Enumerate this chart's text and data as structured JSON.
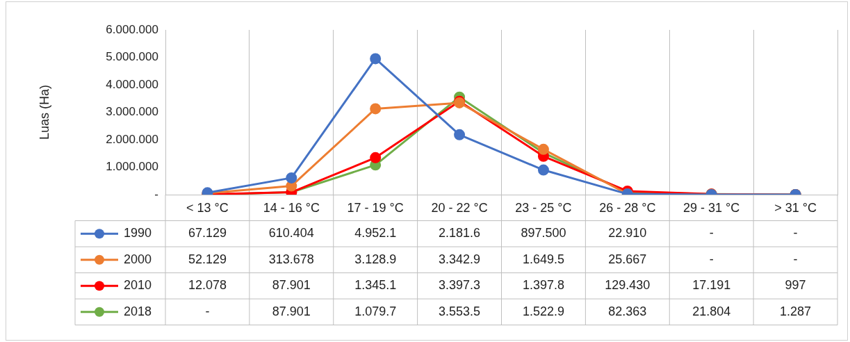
{
  "chart_data": {
    "type": "line",
    "ylabel": "Luas (Ha)",
    "categories": [
      "< 13 °C",
      "14 - 16 °C",
      "17 - 19 °C",
      "20 - 22 °C",
      "23 - 25 °C",
      "26 - 28 °C",
      "29 - 31 °C",
      "> 31 °C"
    ],
    "series": [
      {
        "name": "1990",
        "color": "#4472c4",
        "values": [
          67129,
          610404,
          4952100,
          2181600,
          897500,
          22910,
          0,
          0
        ],
        "value_labels": [
          "67.129",
          "610.404",
          "4.952.1",
          "2.181.6",
          "897.500",
          "22.910",
          "-",
          "-"
        ]
      },
      {
        "name": "2000",
        "color": "#ed7d31",
        "values": [
          52129,
          313678,
          3128900,
          3342900,
          1649500,
          25667,
          0,
          0
        ],
        "value_labels": [
          "52.129",
          "313.678",
          "3.128.9",
          "3.342.9",
          "1.649.5",
          "25.667",
          "-",
          "-"
        ]
      },
      {
        "name": "2010",
        "color": "#ff0000",
        "values": [
          12078,
          87901,
          1345100,
          3397300,
          1397800,
          129430,
          17191,
          997
        ],
        "value_labels": [
          "12.078",
          "87.901",
          "1.345.1",
          "3.397.3",
          "1.397.8",
          "129.430",
          "17.191",
          "997"
        ]
      },
      {
        "name": "2018",
        "color": "#70ad47",
        "values": [
          0,
          87901,
          1079700,
          3553500,
          1522900,
          82363,
          21804,
          1287
        ],
        "value_labels": [
          "-",
          "87.901",
          "1.079.7",
          "3.553.5",
          "1.522.9",
          "82.363",
          "21.804",
          "1.287"
        ]
      }
    ],
    "ylim": [
      0,
      6000000
    ],
    "yticks": [
      {
        "value": 0,
        "label": "-"
      },
      {
        "value": 1000000,
        "label": "1.000.000"
      },
      {
        "value": 2000000,
        "label": "2.000.000"
      },
      {
        "value": 3000000,
        "label": "3.000.000"
      },
      {
        "value": 4000000,
        "label": "4.000.000"
      },
      {
        "value": 5000000,
        "label": "5.000.000"
      },
      {
        "value": 6000000,
        "label": "6.000.000"
      }
    ],
    "grid": "x",
    "marker": "circle",
    "line_style": "solid",
    "legend": "bottom left"
  }
}
